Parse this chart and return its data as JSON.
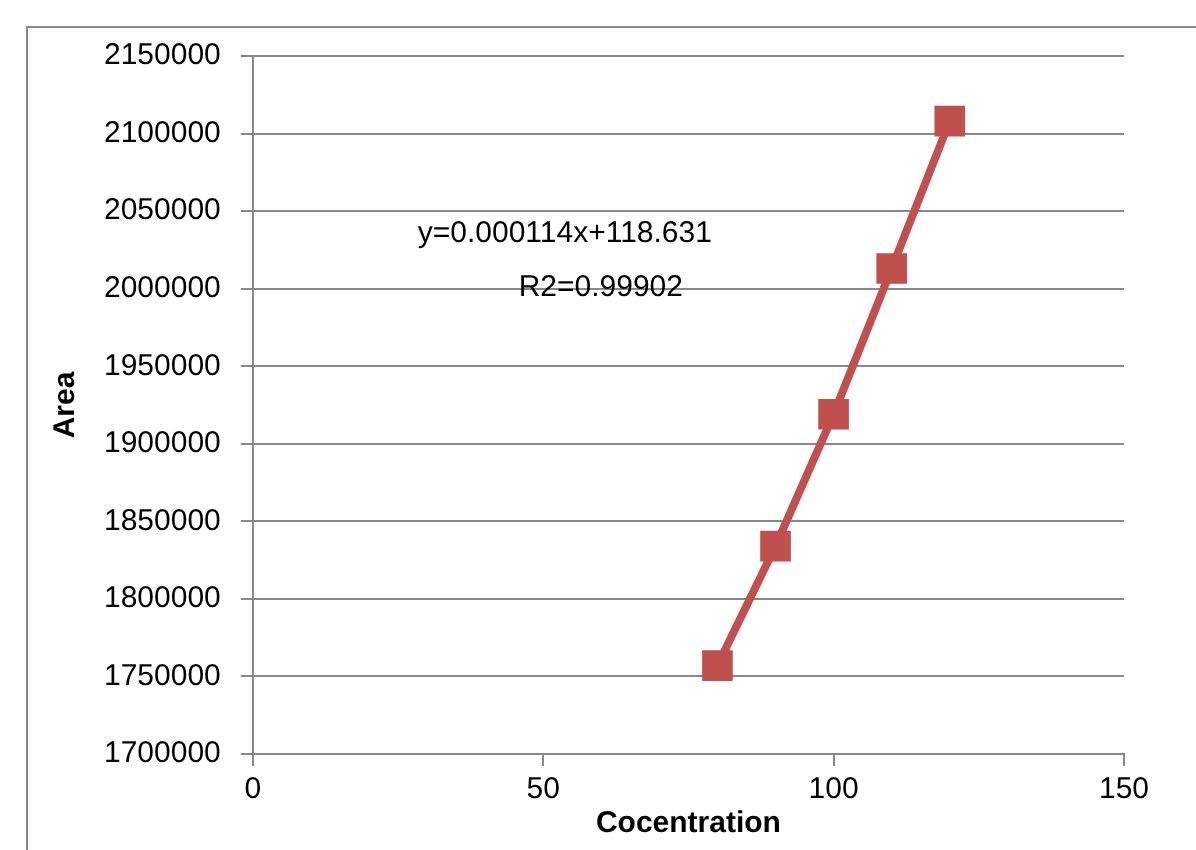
{
  "chart_data": {
    "type": "line",
    "xlabel": "Cocentration",
    "ylabel": "Area",
    "x": [
      80,
      90,
      100,
      110,
      120
    ],
    "series": [
      {
        "color": "#c0504d",
        "values": [
          1757000,
          1834000,
          1919000,
          2013000,
          2108000
        ]
      }
    ],
    "xlim": [
      0,
      150
    ],
    "xticks": [
      0,
      50,
      100,
      150
    ],
    "ylim": [
      1700000,
      2150000
    ],
    "yticks": [
      1700000,
      1750000,
      1800000,
      1850000,
      1900000,
      1950000,
      2000000,
      2050000,
      2100000,
      2150000
    ],
    "grid": "y",
    "legend": false,
    "marker": "square",
    "line_style": "solid",
    "annotations": [
      "y=0.000114x+118.631",
      "R2=0.99902"
    ]
  }
}
